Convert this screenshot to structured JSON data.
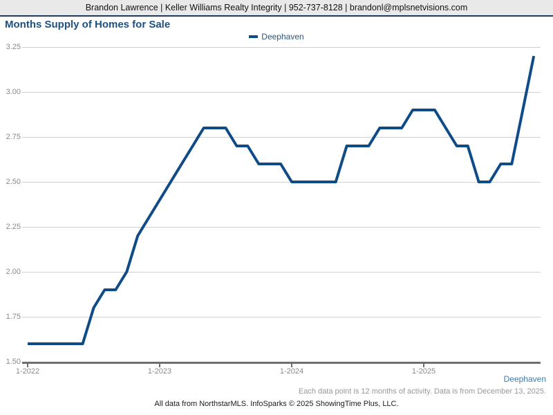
{
  "header": {
    "contact_line": "Brandon Lawrence | Keller Williams Realty Integrity | 952-737-8128 | brandonl@mplsnetvisions.com"
  },
  "title": "Months Supply of Homes for Sale",
  "legend": {
    "label": "Deephaven"
  },
  "chart_data": {
    "type": "line",
    "title": "Months Supply of Homes for Sale",
    "x": [
      "1-2022",
      "2-2022",
      "3-2022",
      "4-2022",
      "5-2022",
      "6-2022",
      "7-2022",
      "8-2022",
      "9-2022",
      "10-2022",
      "11-2022",
      "12-2022",
      "1-2023",
      "2-2023",
      "3-2023",
      "4-2023",
      "5-2023",
      "6-2023",
      "7-2023",
      "8-2023",
      "9-2023",
      "10-2023",
      "11-2023",
      "12-2023",
      "1-2024",
      "2-2024",
      "3-2024",
      "4-2024",
      "5-2024",
      "6-2024",
      "7-2024",
      "8-2024",
      "9-2024",
      "10-2024",
      "11-2024",
      "12-2024",
      "1-2025",
      "2-2025",
      "3-2025",
      "4-2025",
      "5-2025",
      "6-2025",
      "7-2025",
      "8-2025",
      "9-2025",
      "10-2025",
      "11-2025"
    ],
    "series": [
      {
        "name": "Deephaven",
        "color": "#0f4c87",
        "values": [
          1.6,
          1.6,
          1.6,
          1.6,
          1.6,
          1.6,
          1.8,
          1.9,
          1.9,
          2.0,
          2.2,
          2.3,
          2.4,
          2.5,
          2.6,
          2.7,
          2.8,
          2.8,
          2.8,
          2.7,
          2.7,
          2.6,
          2.6,
          2.6,
          2.5,
          2.5,
          2.5,
          2.5,
          2.5,
          2.7,
          2.7,
          2.7,
          2.8,
          2.8,
          2.8,
          2.9,
          2.9,
          2.9,
          2.8,
          2.7,
          2.7,
          2.5,
          2.5,
          2.6,
          2.6,
          2.9,
          3.2
        ]
      }
    ],
    "x_tick_labels": [
      "1-2022",
      "1-2023",
      "1-2024",
      "1-2025"
    ],
    "x_tick_indices": [
      0,
      12,
      24,
      36
    ],
    "y_tick_labels_top_down": [
      "3.25",
      "3.00",
      "2.75",
      "2.50",
      "2.25",
      "2.00",
      "1.75",
      "1.50"
    ],
    "ylim": [
      1.5,
      3.25
    ],
    "grid": "horizontal",
    "legend_position": "top-center"
  },
  "footer": {
    "series_label": "Deephaven",
    "note": "Each data point is 12 months of activity. Data is from December 13, 2025.",
    "attribution": "All data from NorthstarMLS. InfoSparks © 2025 ShowingTime Plus, LLC."
  },
  "colors": {
    "line": "#0f4c87",
    "title_text": "#1c5180",
    "header_border": "#20395a",
    "bottom_series_label": "#4178ab"
  }
}
